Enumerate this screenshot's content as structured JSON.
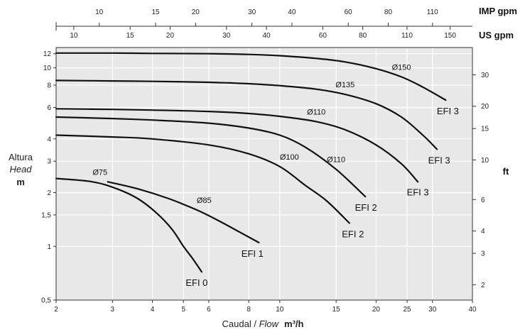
{
  "chart_data": {
    "type": "line",
    "x_scale": "log",
    "y_scale": "log",
    "xlim": [
      2,
      40
    ],
    "ylim": [
      0.5,
      13
    ],
    "grid": true,
    "x_ticks": [
      2,
      3,
      4,
      5,
      6,
      8,
      10,
      15,
      20,
      25,
      30,
      40
    ],
    "x_tick_labels": [
      "2",
      "3",
      "4",
      "5",
      "6",
      "8",
      "10",
      "15",
      "20",
      "25",
      "30",
      "40"
    ],
    "y_ticks": [
      0.5,
      1,
      1.5,
      2,
      3,
      4,
      6,
      8,
      10,
      12
    ],
    "y_tick_labels": [
      "0,5",
      "1",
      "1,5",
      "2",
      "3",
      "4",
      "6",
      "8",
      "10",
      "12"
    ],
    "x_label_prefix": "Caudal / ",
    "x_label_italic": "Flow",
    "x_label_unit": "m³/h",
    "y_label_lines": [
      "Altura",
      "Head",
      "m"
    ],
    "ft_axis": {
      "unit": "ft",
      "ticks": [
        2,
        3,
        4,
        6,
        10,
        15,
        20,
        30
      ],
      "tick_labels": [
        "2",
        "3",
        "4",
        "6",
        "10",
        "15",
        "20",
        "30"
      ]
    },
    "imp_gpm_axis": {
      "unit": "IMP gpm",
      "ticks": [
        10,
        15,
        20,
        30,
        40,
        60,
        80,
        110
      ],
      "tick_labels": [
        "10",
        "15",
        "20",
        "30",
        "40",
        "60",
        "80",
        "110"
      ]
    },
    "us_gpm_axis": {
      "unit": "US gpm",
      "ticks": [
        10,
        15,
        20,
        30,
        40,
        60,
        80,
        110,
        150
      ],
      "tick_labels": [
        "10",
        "15",
        "20",
        "30",
        "40",
        "60",
        "80",
        "110",
        "150"
      ]
    },
    "series": [
      {
        "name": "Ø75",
        "model": "EFI 0",
        "x": [
          2.0,
          2.6,
          3.1,
          3.6,
          4.1,
          4.6,
          5.0,
          5.35,
          5.7
        ],
        "y": [
          2.4,
          2.3,
          2.1,
          1.85,
          1.55,
          1.25,
          1.0,
          0.85,
          0.72
        ]
      },
      {
        "name": "Ø85",
        "model": "EFI 1",
        "x": [
          2.9,
          3.6,
          4.5,
          5.5,
          6.5,
          7.5,
          8.6
        ],
        "y": [
          2.3,
          2.1,
          1.85,
          1.6,
          1.38,
          1.2,
          1.05
        ]
      },
      {
        "name": "Ø100",
        "model": "EFI 2",
        "x": [
          2.0,
          3.0,
          4.0,
          6.0,
          8.0,
          10.0,
          12.0,
          14.0,
          16.5
        ],
        "y": [
          4.2,
          4.1,
          4.0,
          3.7,
          3.3,
          2.8,
          2.2,
          1.8,
          1.35
        ]
      },
      {
        "name": "Ø110",
        "model": "EFI 2",
        "x": [
          2.0,
          3.0,
          4.0,
          6.0,
          8.0,
          10.0,
          12.0,
          15.0,
          18.5
        ],
        "y": [
          5.3,
          5.2,
          5.1,
          4.9,
          4.6,
          4.2,
          3.6,
          2.7,
          1.9
        ]
      },
      {
        "name": "Ø110",
        "model": "EFI 3",
        "x": [
          2.0,
          3.0,
          4.0,
          6.0,
          8.0,
          10.0,
          13.0,
          16.0,
          20.0,
          24.0,
          27.0
        ],
        "y": [
          5.9,
          5.85,
          5.8,
          5.7,
          5.55,
          5.35,
          5.0,
          4.5,
          3.7,
          2.9,
          2.3
        ]
      },
      {
        "name": "Ø135",
        "model": "EFI 3",
        "x": [
          2.0,
          3.0,
          4.0,
          6.0,
          8.0,
          10.0,
          13.0,
          16.0,
          20.0,
          24.0,
          28.0,
          31.0
        ],
        "y": [
          8.5,
          8.45,
          8.4,
          8.3,
          8.15,
          7.95,
          7.6,
          7.1,
          6.3,
          5.3,
          4.2,
          3.5
        ]
      },
      {
        "name": "Ø150",
        "model": "EFI 3",
        "x": [
          2.0,
          3.0,
          4.0,
          6.0,
          8.0,
          10.0,
          13.0,
          16.0,
          20.0,
          24.0,
          28.0,
          33.0
        ],
        "y": [
          12.1,
          12.1,
          12.05,
          12.0,
          11.9,
          11.7,
          11.3,
          10.8,
          9.9,
          8.9,
          7.8,
          6.6
        ]
      }
    ]
  }
}
